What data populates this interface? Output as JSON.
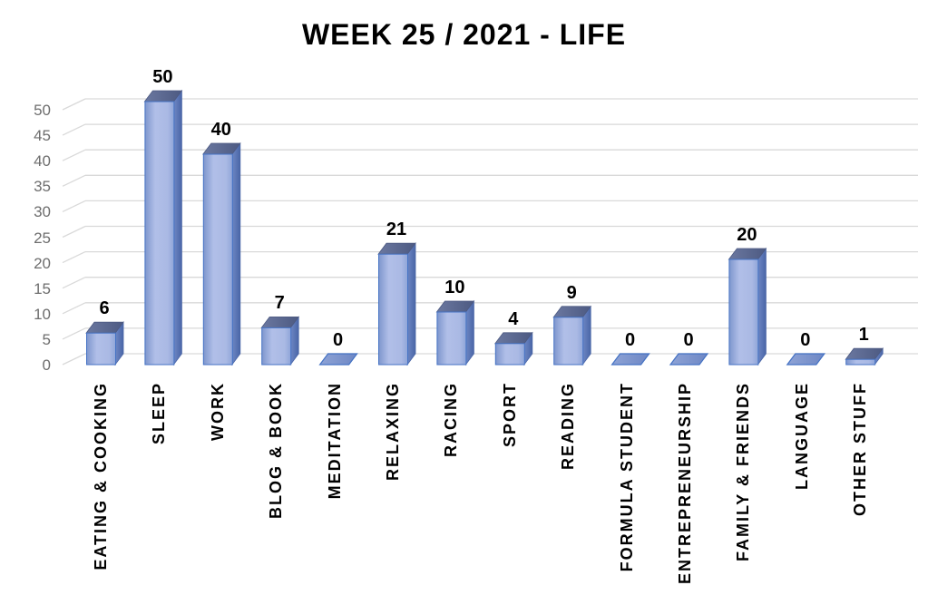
{
  "chart_data": {
    "type": "bar",
    "style": "3d-column",
    "title": "WEEK 25 / 2021 - LIFE",
    "categories": [
      "EATING & COOKING",
      "SLEEP",
      "WORK",
      "BLOG & BOOK",
      "MEDITATION",
      "RELAXING",
      "RACING",
      "SPORT",
      "READING",
      "FORMULA STUDENT",
      "ENTREPRENEURSHIP",
      "FAMILY & FRIENDS",
      "LANGUAGE",
      "OTHER STUFF"
    ],
    "values": [
      6,
      50,
      40,
      7,
      0,
      21,
      10,
      4,
      9,
      0,
      0,
      20,
      0,
      1
    ],
    "data_labels": true,
    "xlabel": "",
    "ylabel": "",
    "ylim": [
      0,
      50
    ],
    "yticks": [
      0,
      5,
      10,
      15,
      20,
      25,
      30,
      35,
      40,
      45,
      50
    ],
    "grid": "horizontal",
    "legend": "none",
    "colors": {
      "background": "#ffffff",
      "title_text": "#000000",
      "label_text": "#000000",
      "axis_text": "#6e6e6e",
      "gridline": "#d9d9d9",
      "bar_edge": "#4472c4",
      "bar_front_dark": "#7e96cd",
      "bar_front_light": "#b1bfe8",
      "bar_front_mid": "#aab9e4",
      "bar_front_shade": "#8fa5d8",
      "bar_side_light": "#6e87c4",
      "bar_side_dark": "#4a66a7",
      "bar_top_light": "#6b78a0",
      "bar_top_dark": "#4d5a82",
      "zero_marker_fill": "#8ea3d6"
    }
  }
}
